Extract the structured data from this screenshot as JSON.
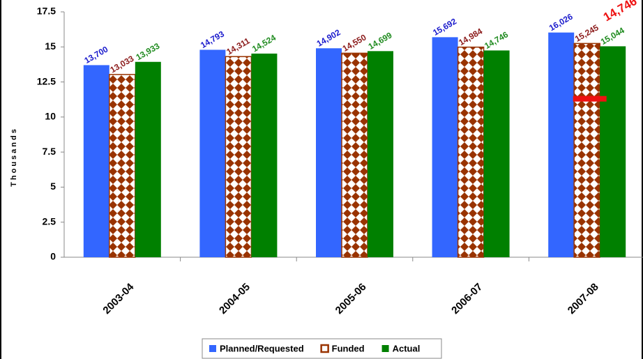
{
  "chart_data": {
    "type": "bar",
    "y_label": "Thousands",
    "categories": [
      "2003-04",
      "2004-05",
      "2005-06",
      "2006-07",
      "2007-08"
    ],
    "series": [
      {
        "name": "Planned/Requested",
        "color": "#3366ff",
        "label_color": "#1a1acc",
        "values": [
          13.7,
          14.793,
          14.902,
          15.692,
          16.026
        ],
        "value_labels": [
          "13,700",
          "14,793",
          "14,902",
          "15,692",
          "16,026"
        ]
      },
      {
        "name": "Funded",
        "color": "#993300",
        "label_color": "#8b1a1a",
        "pattern": "diamond",
        "values": [
          13.033,
          14.311,
          14.55,
          14.984,
          15.245
        ],
        "value_labels": [
          "13,033",
          "14,311",
          "14,550",
          "14,984",
          "15,245"
        ]
      },
      {
        "name": "Actual",
        "color": "#008000",
        "label_color": "#1f8b1f",
        "values": [
          13.933,
          14.524,
          14.699,
          14.746,
          15.044
        ],
        "value_labels": [
          "13,933",
          "14,524",
          "14,699",
          "14,746",
          "15,044"
        ]
      }
    ],
    "annotation": {
      "text": "14,746",
      "color": "#ee1111",
      "category": 4,
      "marker": 11.3
    },
    "ylim": [
      0,
      17.5
    ],
    "yticks": [
      0,
      2.5,
      5,
      7.5,
      10,
      12.5,
      15,
      17.5
    ]
  }
}
